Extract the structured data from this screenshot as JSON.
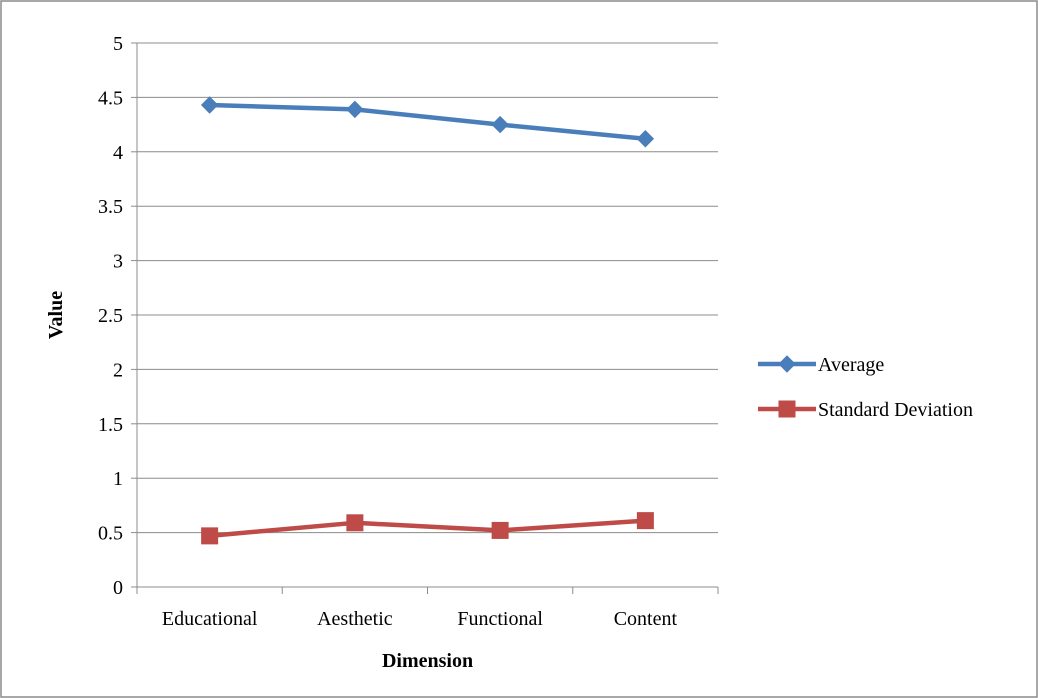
{
  "chart_data": {
    "type": "line",
    "title": "",
    "xlabel": "Dimension",
    "ylabel": "Value",
    "categories": [
      "Educational",
      "Aesthetic",
      "Functional",
      "Content"
    ],
    "ylim": [
      0,
      5
    ],
    "yticks": [
      "0",
      "0.5",
      "1",
      "1.5",
      "2",
      "2.5",
      "3",
      "3.5",
      "4",
      "4.5",
      "5"
    ],
    "grid": true,
    "legend_position": "right",
    "series": [
      {
        "name": "Average",
        "values": [
          4.43,
          4.39,
          4.25,
          4.12
        ],
        "color": "#4a7ebb",
        "marker": "diamond"
      },
      {
        "name": "Standard Deviation",
        "values": [
          0.47,
          0.59,
          0.52,
          0.61
        ],
        "color": "#be4b48",
        "marker": "square"
      }
    ]
  }
}
